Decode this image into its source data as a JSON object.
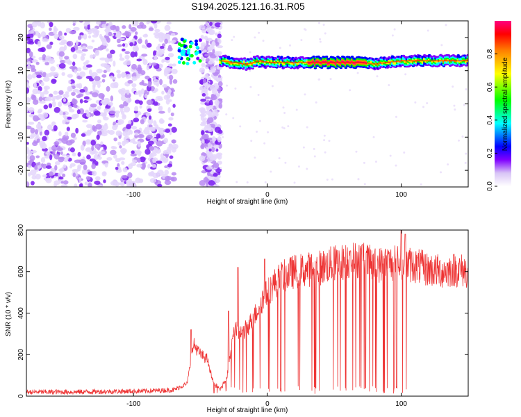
{
  "title": "S194.2025.121.16.31.R05",
  "chart_data": [
    {
      "type": "heatmap",
      "xlabel": "Height of straight line (km)",
      "ylabel": "Frequency (Hz)",
      "xlim": [
        -180,
        150
      ],
      "ylim": [
        -25,
        25
      ],
      "xticks": [
        -100,
        0,
        100
      ],
      "yticks": [
        -20,
        -10,
        0,
        10,
        20
      ],
      "grid": false,
      "ridge": {
        "x": [
          -35,
          -25,
          -15,
          -5,
          0,
          10,
          20,
          30,
          40,
          50,
          60,
          70,
          80,
          90,
          100,
          110,
          120,
          130,
          140,
          150
        ],
        "y": [
          13,
          12.5,
          12,
          13,
          12.5,
          12.5,
          12.5,
          12.5,
          12.5,
          12.5,
          12.5,
          12.5,
          12,
          12.5,
          13,
          13,
          13,
          13,
          13,
          13
        ]
      },
      "colorbar": {
        "label": "Normalized spectral amplitude",
        "range": [
          0,
          1
        ],
        "ticks": [
          "0.0",
          "0.2",
          "0.4",
          "0.6",
          "0.8"
        ],
        "colormap": "rainbow",
        "colors": [
          "#e8dcf8",
          "#8000ff",
          "#0000ff",
          "#00ffff",
          "#00ff00",
          "#ffff00",
          "#ff8000",
          "#ff0000",
          "#ff0080"
        ]
      }
    },
    {
      "type": "line",
      "xlabel": "Height of straight line (km)",
      "ylabel": "SNR (10 * v/v)",
      "xlim": [
        -180,
        150
      ],
      "ylim": [
        0,
        800
      ],
      "xticks": [
        -100,
        0,
        100
      ],
      "yticks": [
        0,
        200,
        400,
        600,
        800
      ],
      "grid": false,
      "series": [
        {
          "color": "#ee3333",
          "envelope_x": [
            -180,
            -150,
            -120,
            -90,
            -70,
            -60,
            -55,
            -50,
            -45,
            -40,
            -35,
            -30,
            -25,
            -20,
            -15,
            -10,
            -5,
            0,
            5,
            10,
            20,
            30,
            40,
            50,
            60,
            70,
            80,
            90,
            100,
            110,
            120,
            130,
            140,
            150
          ],
          "envelope_y": [
            20,
            20,
            22,
            25,
            30,
            60,
            250,
            200,
            180,
            60,
            30,
            100,
            330,
            300,
            330,
            380,
            450,
            500,
            540,
            570,
            600,
            610,
            620,
            640,
            650,
            660,
            630,
            640,
            640,
            630,
            610,
            600,
            610,
            600
          ],
          "spikes": [
            {
              "x": -57,
              "y": 320
            },
            {
              "x": -29,
              "y": 410
            },
            {
              "x": -22,
              "y": 620
            },
            {
              "x": -2,
              "y": 660
            },
            {
              "x": 62,
              "y": 700
            },
            {
              "x": 71,
              "y": 730
            },
            {
              "x": 100,
              "y": 800
            },
            {
              "x": 103,
              "y": 780
            }
          ]
        }
      ]
    }
  ]
}
